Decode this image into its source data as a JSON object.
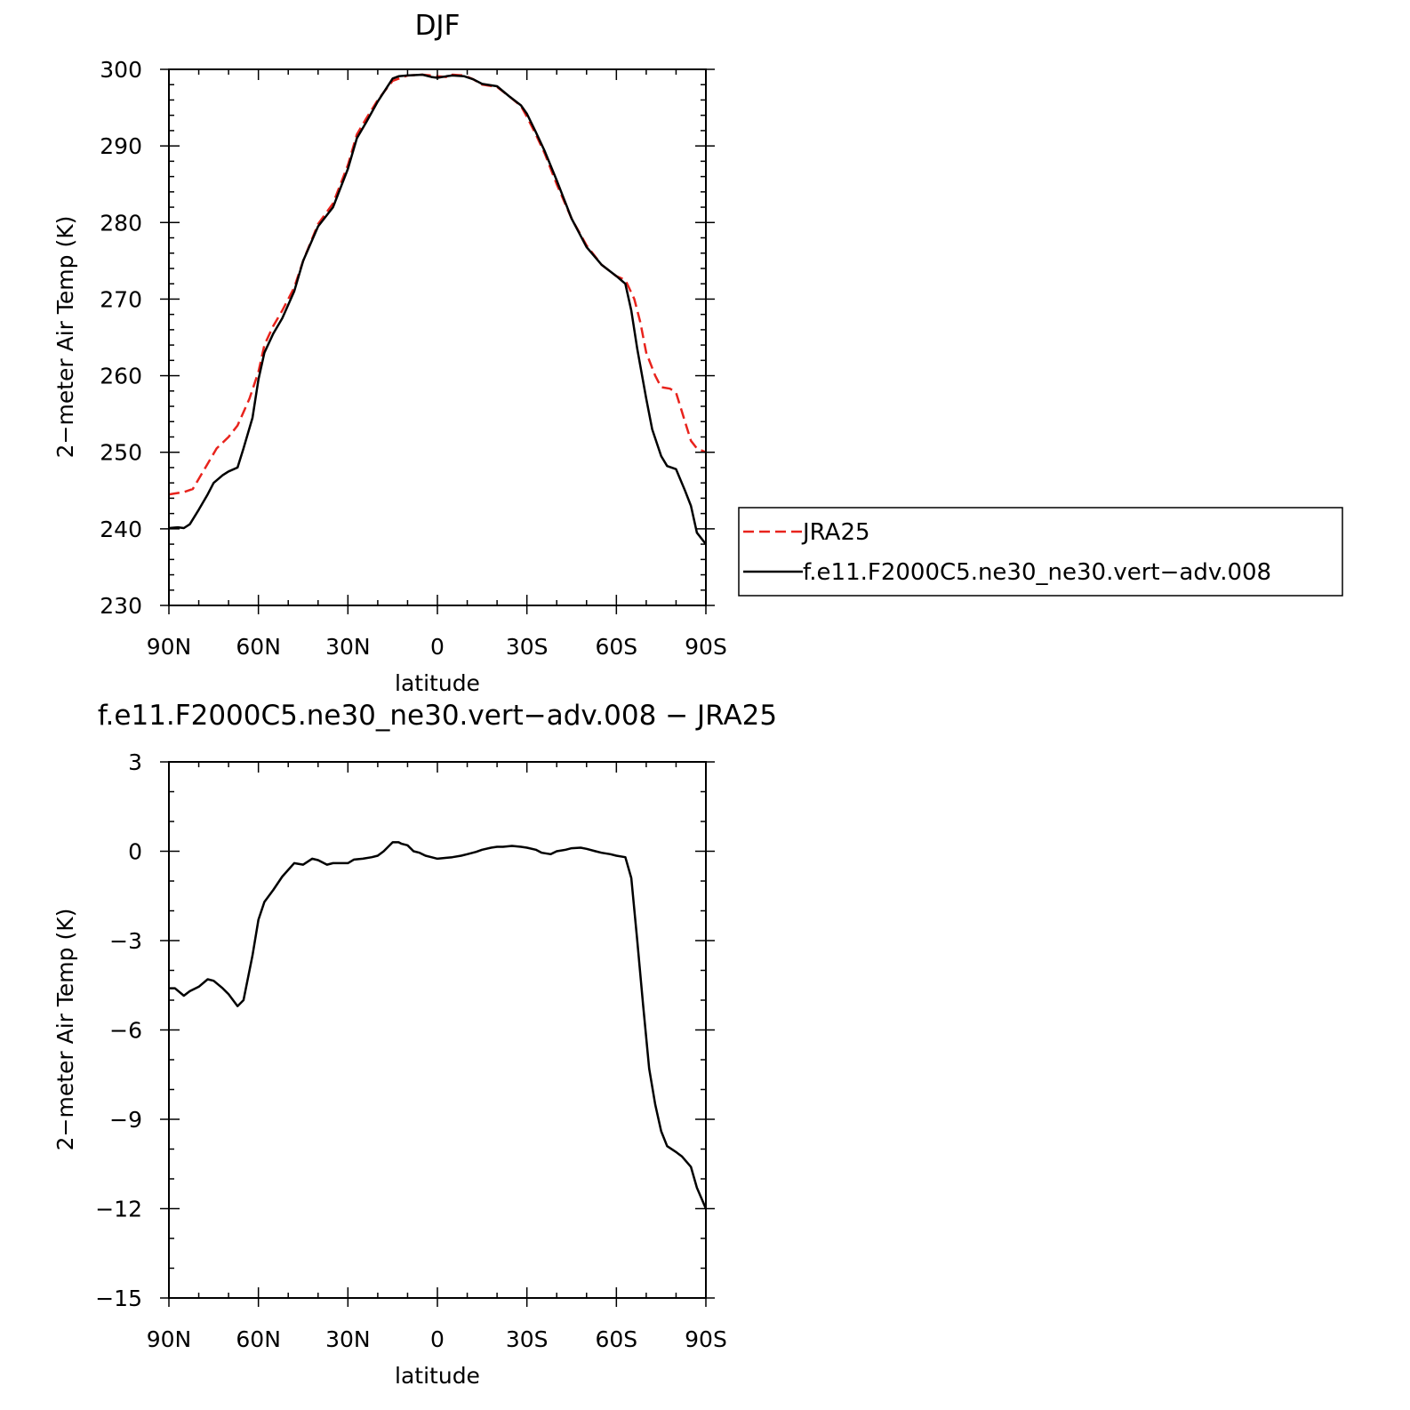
{
  "chart_data": [
    {
      "type": "line",
      "title": "DJF",
      "xlabel": "latitude",
      "ylabel": "2−meter Air Temp (K)",
      "x_ticks": [
        "90N",
        "60N",
        "30N",
        "0",
        "30S",
        "60S",
        "90S"
      ],
      "y_ticks": [
        "230",
        "240",
        "250",
        "260",
        "270",
        "280",
        "290",
        "300"
      ],
      "xlim": [
        90,
        -90
      ],
      "ylim": [
        230,
        300
      ],
      "legend_position": "right",
      "series": [
        {
          "name": "JRA25",
          "color": "#e8231c",
          "style": "dashed",
          "x": [
            90,
            85,
            82,
            77,
            74,
            70,
            67,
            63,
            60,
            58,
            55,
            52,
            48,
            45,
            40,
            35,
            30,
            27,
            24,
            20,
            15,
            10,
            5,
            2,
            0,
            -3,
            -5,
            -9,
            -12,
            -15,
            -20,
            -24,
            -28,
            -30,
            -33,
            -36,
            -40,
            -45,
            -50,
            -55,
            -60,
            -63,
            -66,
            -68,
            -70,
            -73,
            -75,
            -78,
            -80,
            -83,
            -85,
            -87,
            -90
          ],
          "y": [
            244.5,
            244.8,
            245.2,
            248.5,
            250.5,
            252,
            253.5,
            257,
            260.5,
            264,
            266.5,
            268.5,
            271.5,
            275,
            279.8,
            282.5,
            287.5,
            291.5,
            293.5,
            296,
            298.5,
            299.2,
            299.3,
            299.2,
            299.1,
            299,
            299.3,
            299.2,
            298.7,
            298,
            297.7,
            296.5,
            295.2,
            293.8,
            291.5,
            289,
            285,
            280.5,
            277,
            274.5,
            273,
            272.5,
            270,
            267,
            263,
            260,
            258.5,
            258.3,
            257.8,
            254,
            251.5,
            250.5,
            250
          ]
        },
        {
          "name": "f.e11.F2000C5.ne30_ne30.vert−adv.008",
          "color": "#000000",
          "style": "solid",
          "x": [
            90,
            87,
            85,
            83,
            80,
            77,
            75,
            72,
            70,
            67,
            65,
            62,
            60,
            58,
            55,
            52,
            48,
            45,
            40,
            35,
            30,
            27,
            24,
            20,
            15,
            13,
            10,
            5,
            2,
            0,
            -3,
            -5,
            -9,
            -12,
            -15,
            -20,
            -24,
            -28,
            -30,
            -33,
            -36,
            -40,
            -45,
            -50,
            -55,
            -60,
            -63,
            -65,
            -67,
            -70,
            -72,
            -75,
            -77,
            -80,
            -83,
            -85,
            -87,
            -90
          ],
          "y": [
            240.1,
            240.2,
            240.1,
            240.6,
            242.5,
            244.5,
            246,
            247,
            247.5,
            248,
            250.5,
            254.5,
            259.5,
            263,
            265.5,
            267.5,
            271,
            275,
            279.5,
            282,
            287,
            291,
            293,
            295.8,
            298.8,
            299.1,
            299.2,
            299.3,
            299,
            298.9,
            299.1,
            299.2,
            299.1,
            298.7,
            298.1,
            297.8,
            296.5,
            295.3,
            294.2,
            291.8,
            289.3,
            285.5,
            280.5,
            276.8,
            274.5,
            273,
            272,
            268.5,
            263.5,
            257,
            253,
            249.5,
            248.2,
            247.8,
            245,
            243,
            239.5,
            238
          ]
        }
      ]
    },
    {
      "type": "line",
      "title": "f.e11.F2000C5.ne30_ne30.vert−adv.008 − JRA25",
      "xlabel": "latitude",
      "ylabel": "2−meter Air Temp (K)",
      "x_ticks": [
        "90N",
        "60N",
        "30N",
        "0",
        "30S",
        "60S",
        "90S"
      ],
      "y_ticks": [
        "3",
        "0",
        "−3",
        "−6",
        "−9",
        "−12",
        "−15"
      ],
      "xlim": [
        90,
        -90
      ],
      "ylim": [
        -15,
        3
      ],
      "series": [
        {
          "color": "#000000",
          "style": "solid",
          "x": [
            90,
            88,
            85,
            83,
            80,
            77,
            75,
            72,
            70,
            67,
            65,
            62,
            60,
            58,
            55,
            52,
            48,
            45,
            42,
            40,
            37,
            35,
            32,
            30,
            28,
            25,
            22,
            20,
            18,
            15,
            13,
            12,
            10,
            8,
            6,
            4,
            2,
            0,
            -3,
            -5,
            -8,
            -10,
            -13,
            -15,
            -18,
            -20,
            -22,
            -25,
            -28,
            -30,
            -33,
            -35,
            -38,
            -40,
            -43,
            -45,
            -48,
            -50,
            -53,
            -55,
            -58,
            -60,
            -63,
            -65,
            -67,
            -69,
            -71,
            -73,
            -75,
            -77,
            -80,
            -82,
            -85,
            -87,
            -90
          ],
          "y": [
            -4.6,
            -4.6,
            -4.85,
            -4.7,
            -4.55,
            -4.3,
            -4.35,
            -4.6,
            -4.8,
            -5.2,
            -5.0,
            -3.5,
            -2.3,
            -1.7,
            -1.3,
            -0.85,
            -0.4,
            -0.45,
            -0.25,
            -0.3,
            -0.45,
            -0.4,
            -0.4,
            -0.4,
            -0.28,
            -0.25,
            -0.2,
            -0.15,
            0.0,
            0.3,
            0.3,
            0.25,
            0.2,
            0.0,
            -0.05,
            -0.15,
            -0.2,
            -0.25,
            -0.22,
            -0.2,
            -0.15,
            -0.1,
            -0.02,
            0.05,
            0.12,
            0.15,
            0.15,
            0.18,
            0.15,
            0.12,
            0.05,
            -0.05,
            -0.1,
            0.0,
            0.05,
            0.1,
            0.12,
            0.08,
            0.0,
            -0.05,
            -0.1,
            -0.15,
            -0.2,
            -0.9,
            -3.0,
            -5.2,
            -7.3,
            -8.5,
            -9.4,
            -9.9,
            -10.1,
            -10.25,
            -10.6,
            -11.3,
            -12.0
          ]
        }
      ]
    }
  ],
  "legend": {
    "items": [
      {
        "label": "JRA25",
        "color": "#e8231c",
        "style": "dashed"
      },
      {
        "label": "f.e11.F2000C5.ne30_ne30.vert−adv.008",
        "color": "#000000",
        "style": "solid"
      }
    ]
  }
}
